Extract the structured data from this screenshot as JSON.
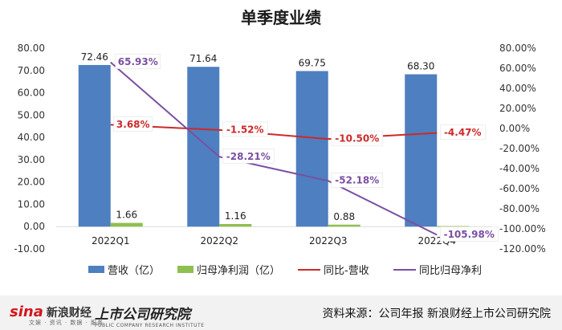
{
  "title": "单季度业绩",
  "chart_data": {
    "type": "bar",
    "categories": [
      "2022Q1",
      "2022Q2",
      "2022Q3",
      "2022Q4"
    ],
    "series": [
      {
        "name": "营收（亿）",
        "type": "bar",
        "axis": "left",
        "color": "#4e7fc0",
        "values": [
          72.46,
          71.64,
          69.75,
          68.3
        ],
        "labels": [
          "72.46",
          "71.64",
          "69.75",
          "68.30"
        ]
      },
      {
        "name": "归母净利润（亿）",
        "type": "bar",
        "axis": "left",
        "color": "#8fbf4f",
        "values": [
          1.66,
          1.16,
          0.88,
          0.23
        ],
        "labels": [
          "1.66",
          "1.16",
          "0.88",
          ""
        ]
      },
      {
        "name": "同比-营收",
        "type": "line",
        "axis": "right",
        "color": "#cc2a2a",
        "values": [
          3.68,
          -1.52,
          -10.5,
          -4.47
        ],
        "labels": [
          "3.68%",
          "-1.52%",
          "-10.50%",
          "-4.47%"
        ]
      },
      {
        "name": "同比归母净利",
        "type": "line",
        "axis": "right",
        "color": "#7b4fa3",
        "values": [
          65.93,
          -28.21,
          -52.18,
          -105.98
        ],
        "labels": [
          "65.93%",
          "-28.21%",
          "-52.18%",
          "-105.98%"
        ]
      }
    ],
    "y_left": {
      "min": -10,
      "max": 80,
      "ticks": [
        "-10.00",
        "0.00",
        "10.00",
        "20.00",
        "30.00",
        "40.00",
        "50.00",
        "60.00",
        "70.00",
        "80.00"
      ]
    },
    "y_right": {
      "min": -120,
      "max": 80,
      "ticks": [
        "-120.00%",
        "-100.00%",
        "-80.00%",
        "-60.00%",
        "-40.00%",
        "-20.00%",
        "0.00%",
        "20.00%",
        "40.00%",
        "60.00%",
        "80.00%"
      ]
    },
    "legend_position": "bottom",
    "grid": false
  },
  "footer": {
    "sina_logo": "sina",
    "sina_cn": "新浪财经",
    "sina_sub": "文娱 · 资讯 · 数据 · 服务",
    "inst_logo": "上市公司研究院",
    "inst_en": "PUBLIC COMPANY RESEARCH INSTITUTE",
    "source": "资料来源：公司年报 新浪财经上市公司研究院"
  }
}
